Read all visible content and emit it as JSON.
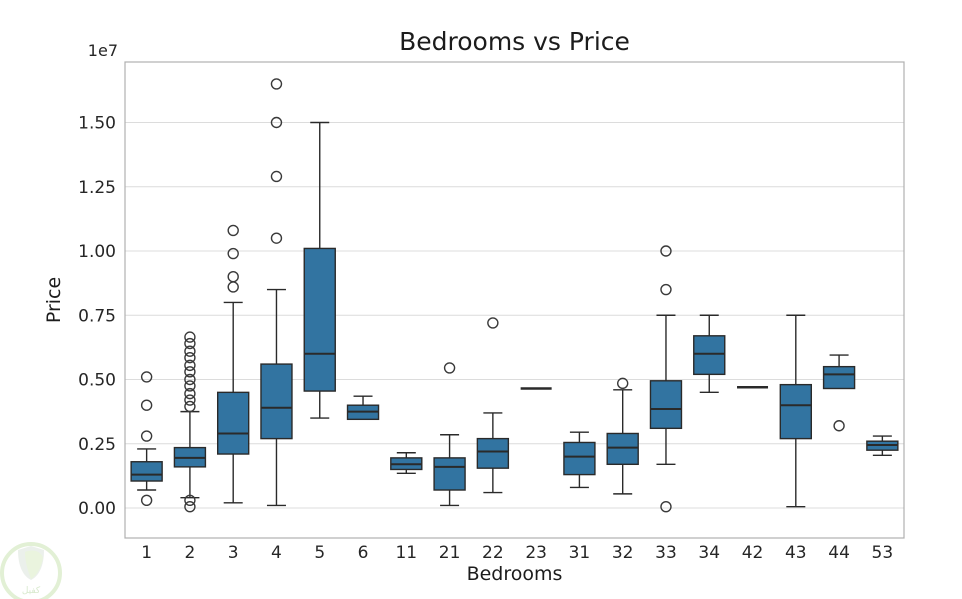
{
  "chart_data": {
    "type": "boxplot",
    "title": "Bedrooms vs Price",
    "xlabel": "Bedrooms",
    "ylabel": "Price",
    "y_offset_label": "1e7",
    "y_ticks": [
      "0.00",
      "0.25",
      "0.50",
      "0.75",
      "1.00",
      "1.25",
      "1.50"
    ],
    "y_tick_values": [
      0,
      0.25,
      0.5,
      0.75,
      1.0,
      1.25,
      1.5
    ],
    "ylim": [
      -0.12,
      1.74
    ],
    "grid": true,
    "legend": null,
    "categories": [
      "1",
      "2",
      "3",
      "4",
      "5",
      "6",
      "11",
      "21",
      "22",
      "23",
      "31",
      "32",
      "33",
      "34",
      "42",
      "43",
      "44",
      "53"
    ],
    "values_unit": "1e7",
    "boxes": [
      {
        "category": "1",
        "whislo": 0.07,
        "q1": 0.105,
        "med": 0.13,
        "q3": 0.18,
        "whishi": 0.23,
        "outliers": [
          0.51,
          0.4,
          0.28,
          0.03
        ]
      },
      {
        "category": "2",
        "whislo": 0.04,
        "q1": 0.16,
        "med": 0.195,
        "q3": 0.235,
        "whishi": 0.375,
        "outliers": [
          0.665,
          0.64,
          0.61,
          0.585,
          0.555,
          0.53,
          0.5,
          0.475,
          0.445,
          0.42,
          0.395,
          0.03,
          0.005
        ]
      },
      {
        "category": "3",
        "whislo": 0.02,
        "q1": 0.21,
        "med": 0.29,
        "q3": 0.45,
        "whishi": 0.8,
        "outliers": [
          1.08,
          0.99,
          0.9,
          0.86
        ]
      },
      {
        "category": "4",
        "whislo": 0.01,
        "q1": 0.27,
        "med": 0.39,
        "q3": 0.56,
        "whishi": 0.85,
        "outliers": [
          1.65,
          1.5,
          1.29,
          1.05
        ]
      },
      {
        "category": "5",
        "whislo": 0.35,
        "q1": 0.455,
        "med": 0.6,
        "q3": 1.01,
        "whishi": 1.5,
        "outliers": []
      },
      {
        "category": "6",
        "whislo": 0.345,
        "q1": 0.345,
        "med": 0.375,
        "q3": 0.4,
        "whishi": 0.435,
        "outliers": []
      },
      {
        "category": "11",
        "whislo": 0.135,
        "q1": 0.15,
        "med": 0.17,
        "q3": 0.195,
        "whishi": 0.215,
        "outliers": []
      },
      {
        "category": "21",
        "whislo": 0.01,
        "q1": 0.07,
        "med": 0.16,
        "q3": 0.195,
        "whishi": 0.285,
        "outliers": [
          0.545
        ]
      },
      {
        "category": "22",
        "whislo": 0.06,
        "q1": 0.155,
        "med": 0.22,
        "q3": 0.27,
        "whishi": 0.37,
        "outliers": [
          0.72
        ]
      },
      {
        "category": "23",
        "whislo": 0.465,
        "q1": 0.465,
        "med": 0.465,
        "q3": 0.465,
        "whishi": 0.465,
        "outliers": []
      },
      {
        "category": "31",
        "whislo": 0.08,
        "q1": 0.13,
        "med": 0.2,
        "q3": 0.255,
        "whishi": 0.295,
        "outliers": []
      },
      {
        "category": "32",
        "whislo": 0.055,
        "q1": 0.17,
        "med": 0.235,
        "q3": 0.29,
        "whishi": 0.46,
        "outliers": [
          0.485
        ]
      },
      {
        "category": "33",
        "whislo": 0.17,
        "q1": 0.31,
        "med": 0.385,
        "q3": 0.495,
        "whishi": 0.75,
        "outliers": [
          1.0,
          0.85,
          0.005
        ]
      },
      {
        "category": "34",
        "whislo": 0.45,
        "q1": 0.52,
        "med": 0.6,
        "q3": 0.67,
        "whishi": 0.75,
        "outliers": []
      },
      {
        "category": "42",
        "whislo": 0.47,
        "q1": 0.47,
        "med": 0.47,
        "q3": 0.47,
        "whishi": 0.47,
        "outliers": []
      },
      {
        "category": "43",
        "whislo": 0.005,
        "q1": 0.27,
        "med": 0.4,
        "q3": 0.48,
        "whishi": 0.75,
        "outliers": []
      },
      {
        "category": "44",
        "whislo": 0.465,
        "q1": 0.465,
        "med": 0.52,
        "q3": 0.55,
        "whishi": 0.595,
        "outliers": [
          0.32
        ]
      },
      {
        "category": "53",
        "whislo": 0.205,
        "q1": 0.225,
        "med": 0.245,
        "q3": 0.26,
        "whishi": 0.28,
        "outliers": []
      }
    ],
    "colors": {
      "box_fill": "#3274a1",
      "line": "#2a2a2a",
      "outlier": "#3a3a3a",
      "grid": "#dcdcdc",
      "spine": "#b0b0b0",
      "text": "#262626"
    }
  },
  "watermark": {
    "icon": "shield-leaf-logo",
    "text": "كفيل",
    "ring_color": "#cbe4b4",
    "shield_color": "#dce4dc",
    "leaf_color": "#d9ecc4",
    "text_color": "#b9d8a6"
  }
}
